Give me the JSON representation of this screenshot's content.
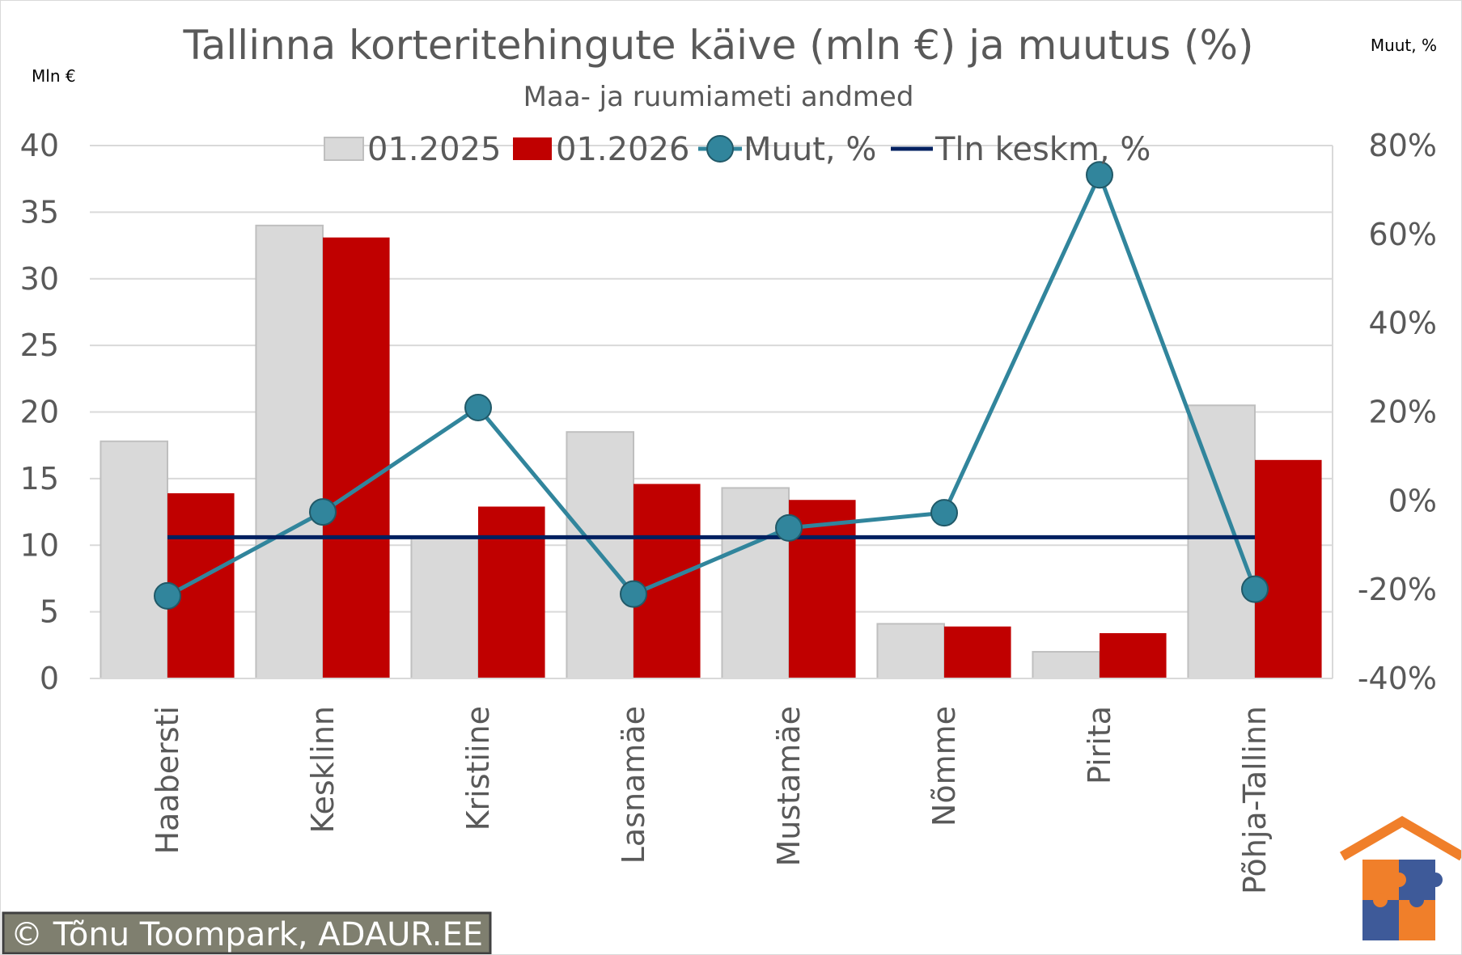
{
  "chart_data": {
    "type": "bar",
    "title": "Tallinna korteritehingute käive (mln €) ja muutus (%)",
    "subtitle": "Maa- ja ruumiameti andmed",
    "ylabel": "Mln €",
    "y2label": "Muut, %",
    "ylim": [
      0,
      40
    ],
    "y2lim": [
      -40,
      80
    ],
    "yticks": [
      "0",
      "5",
      "10",
      "15",
      "20",
      "25",
      "30",
      "35",
      "40"
    ],
    "y2ticks": [
      "-40%",
      "-20%",
      "0%",
      "20%",
      "40%",
      "60%",
      "80%"
    ],
    "grid": true,
    "legend_position": "top",
    "categories": [
      "Haabersti",
      "Kesklinn",
      "Kristiine",
      "Lasnamäe",
      "Mustamäe",
      "Nõmme",
      "Pirita",
      "Põhja-Tallinn"
    ],
    "series": [
      {
        "name": "01.2025",
        "type": "bar",
        "axis": "left",
        "color": "#d9d9d9",
        "values": [
          17.8,
          34.0,
          10.6,
          18.5,
          14.3,
          4.1,
          2.0,
          20.5
        ]
      },
      {
        "name": "01.2026",
        "type": "bar",
        "axis": "left",
        "color": "#c00000",
        "values": [
          13.9,
          33.1,
          12.9,
          14.6,
          13.4,
          3.9,
          3.4,
          16.4
        ]
      },
      {
        "name": "Muut, %",
        "type": "line",
        "axis": "right",
        "color": "#31859c",
        "values": [
          -21.4,
          -2.5,
          21.0,
          -21.0,
          -6.1,
          -2.7,
          73.4,
          -19.9
        ]
      },
      {
        "name": "Tln keskm, %",
        "type": "line",
        "axis": "right",
        "color": "#002060",
        "values": [
          -8.2,
          -8.2,
          -8.2,
          -8.2,
          -8.2,
          -8.2,
          -8.2,
          -8.2
        ]
      }
    ]
  },
  "footer": {
    "copyright": "© Tõnu Toompark, ADAUR.EE"
  }
}
